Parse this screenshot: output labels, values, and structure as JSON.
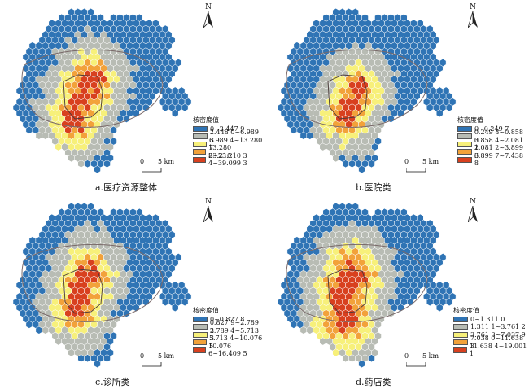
{
  "north_label": "N",
  "legend_title": "核密度值",
  "scale": {
    "zero": "0",
    "distance": "5 km"
  },
  "colors": [
    "#2f74b5",
    "#b8bcb4",
    "#f7f07a",
    "#f2a23a",
    "#d8401f"
  ],
  "panels": [
    {
      "caption": "a.医疗资源整体",
      "legend": [
        "0~2.447 9",
        "2.448 0~6.989 3",
        "6.989 4~13.280 7",
        "13.280 8~23.210 3",
        "23.210 4~39.099 3"
      ]
    },
    {
      "caption": "b.医院类",
      "legend": [
        "0~0.249 7",
        "0.249 8~0.858 3",
        "0.858 4~2.081 1",
        "2.081 2~3.899 6",
        "3.899 7~7.438 8"
      ]
    },
    {
      "caption": "c.诊所类",
      "legend": [
        "0~0.827 8",
        "0.827 9~2.789 3",
        "2.789 4~5.713 3",
        "5.713 4~10.076 5",
        "10.076 6~16.409 5"
      ]
    },
    {
      "caption": "d.药店类",
      "legend": [
        "0~1.311 0",
        "1.311 1~3.761 2",
        "3.761 3~7.037 9",
        "7.038 0~11.638 3",
        "11.638 4~19.001 1"
      ]
    }
  ]
}
